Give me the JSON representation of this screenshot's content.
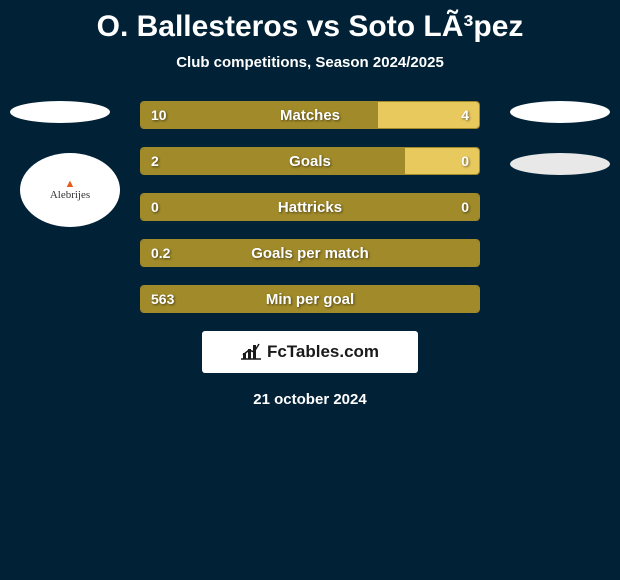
{
  "title": "O. Ballesteros vs Soto LÃ³pez",
  "subtitle": "Club competitions, Season 2024/2025",
  "date": "21 october 2024",
  "brand": "FcTables.com",
  "badge_text": "Alebrijes",
  "colors": {
    "background": "#002136",
    "bar_left": "#a08a2a",
    "bar_right": "#e8c95e",
    "bar_border": "#a08a2a",
    "text": "#ffffff"
  },
  "stats": [
    {
      "label": "Matches",
      "left_val": "10",
      "right_val": "4",
      "left_pct": 70,
      "right_pct": 30
    },
    {
      "label": "Goals",
      "left_val": "2",
      "right_val": "0",
      "left_pct": 78,
      "right_pct": 22
    },
    {
      "label": "Hattricks",
      "left_val": "0",
      "right_val": "0",
      "left_pct": 100,
      "right_pct": 0
    },
    {
      "label": "Goals per match",
      "left_val": "0.2",
      "right_val": "",
      "left_pct": 100,
      "right_pct": 0
    },
    {
      "label": "Min per goal",
      "left_val": "563",
      "right_val": "",
      "left_pct": 100,
      "right_pct": 0
    }
  ]
}
